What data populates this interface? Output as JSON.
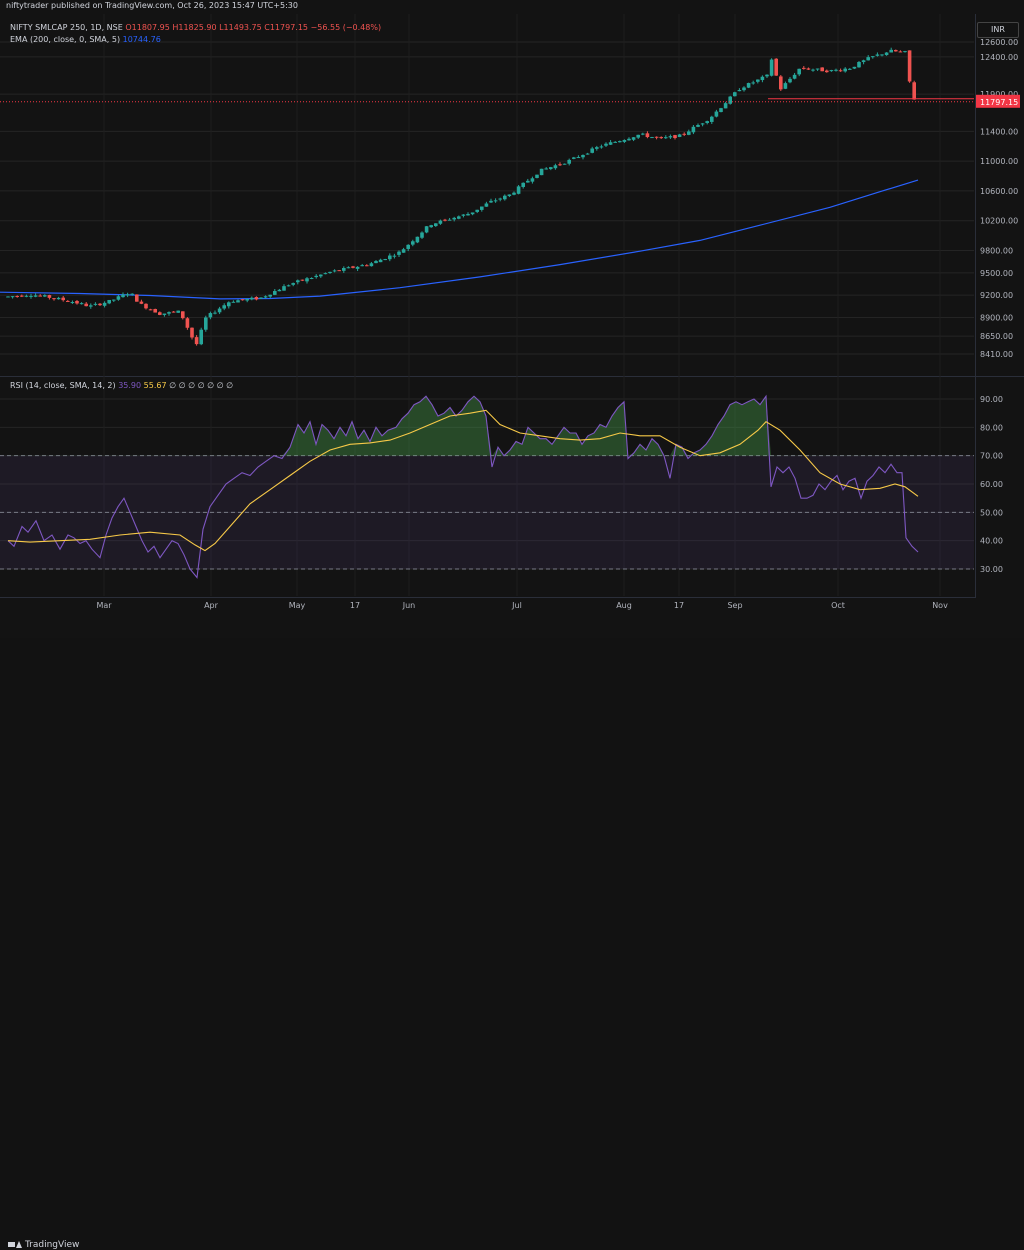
{
  "header": {
    "published": "niftytrader published on TradingView.com, Oct 26, 2023 15:47 UTC+5:30"
  },
  "main_legend": {
    "symbol": "NIFTY SMLCAP 250, 1D, NSE",
    "ohlc": "O11807.95 H11825.90 L11493.75 C11797.15 −56.55 (−0.48%)",
    "ema_label": "EMA (200, close, 0, SMA, 5)",
    "ema_value": "10744.76"
  },
  "rsi_legend": {
    "label": "RSI (14, close, SMA, 14, 2)",
    "rsi_value": "35.90",
    "ma_value": "55.67",
    "extra": "∅ ∅ ∅ ∅ ∅ ∅ ∅"
  },
  "currency_button": "INR",
  "footer": {
    "brand": "TradingView"
  },
  "colors": {
    "up": "#26a69a",
    "down": "#ef5350",
    "ema": "#2962ff",
    "rsi": "#7e57c2",
    "rsi_ma": "#f7c948",
    "last_price": "#f23645"
  },
  "chart_data": [
    {
      "type": "candlestick",
      "title": "NIFTY SMLCAP 250, 1D, NSE",
      "ylim": [
        8230,
        12740
      ],
      "y_ticks": [
        "12600.00",
        "12400.00",
        "11900.00",
        "11400.00",
        "11000.00",
        "10600.00",
        "10200.00",
        "9800.00",
        "9500.00",
        "9200.00",
        "8900.00",
        "8650.00",
        "8410.00"
      ],
      "last_price": "11797.15",
      "x_ticks": [
        "Mar",
        "Apr",
        "May",
        "17",
        "Jun",
        "Jul",
        "Aug",
        "17",
        "Sep",
        "Oct",
        "Nov"
      ],
      "series": [
        {
          "name": "EMA (200, close, 0, SMA, 5)",
          "kind": "line",
          "points": [
            [
              0,
              9240
            ],
            [
              80,
              9222
            ],
            [
              150,
              9195
            ],
            [
              220,
              9150
            ],
            [
              270,
              9155
            ],
            [
              320,
              9188
            ],
            [
              400,
              9300
            ],
            [
              480,
              9445
            ],
            [
              560,
              9610
            ],
            [
              640,
              9790
            ],
            [
              700,
              9935
            ],
            [
              760,
              10140
            ],
            [
              830,
              10380
            ],
            [
              880,
              10590
            ],
            [
              918,
              10744.76
            ]
          ]
        }
      ]
    },
    {
      "type": "line",
      "title": "RSI (14, close, SMA, 14, 2)",
      "ylim": [
        25,
        96
      ],
      "y_ticks": [
        "90.00",
        "80.00",
        "70.00",
        "60.00",
        "50.00",
        "40.00",
        "30.00"
      ],
      "bands": {
        "upper": 70,
        "middle": 50,
        "lower": 30
      },
      "series": [
        {
          "name": "RSI",
          "points": [
            [
              8,
              40
            ],
            [
              14,
              38
            ],
            [
              22,
              45
            ],
            [
              28,
              43
            ],
            [
              36,
              47
            ],
            [
              44,
              40
            ],
            [
              52,
              42
            ],
            [
              60,
              37
            ],
            [
              68,
              42
            ],
            [
              74,
              41
            ],
            [
              80,
              39
            ],
            [
              86,
              40
            ],
            [
              92,
              37
            ],
            [
              100,
              34
            ],
            [
              106,
              42
            ],
            [
              112,
              48
            ],
            [
              118,
              52
            ],
            [
              124,
              55
            ],
            [
              130,
              50
            ],
            [
              136,
              45
            ],
            [
              142,
              40
            ],
            [
              148,
              36
            ],
            [
              154,
              38
            ],
            [
              160,
              34
            ],
            [
              166,
              37
            ],
            [
              172,
              40
            ],
            [
              178,
              39
            ],
            [
              184,
              35
            ],
            [
              190,
              30
            ],
            [
              197,
              27
            ],
            [
              203,
              44
            ],
            [
              210,
              52
            ],
            [
              218,
              56
            ],
            [
              226,
              60
            ],
            [
              234,
              62
            ],
            [
              242,
              64
            ],
            [
              250,
              63
            ],
            [
              258,
              66
            ],
            [
              266,
              68
            ],
            [
              274,
              70
            ],
            [
              282,
              69
            ],
            [
              290,
              73
            ],
            [
              298,
              81
            ],
            [
              304,
              78
            ],
            [
              310,
              82
            ],
            [
              316,
              74
            ],
            [
              322,
              81
            ],
            [
              328,
              79
            ],
            [
              334,
              76
            ],
            [
              340,
              80
            ],
            [
              346,
              77
            ],
            [
              352,
              82
            ],
            [
              358,
              76
            ],
            [
              364,
              79
            ],
            [
              370,
              75
            ],
            [
              376,
              80
            ],
            [
              382,
              77
            ],
            [
              388,
              79
            ],
            [
              396,
              80
            ],
            [
              402,
              83
            ],
            [
              408,
              85
            ],
            [
              414,
              88
            ],
            [
              420,
              89
            ],
            [
              426,
              91
            ],
            [
              432,
              88
            ],
            [
              438,
              84
            ],
            [
              444,
              85
            ],
            [
              450,
              87
            ],
            [
              456,
              84
            ],
            [
              462,
              86
            ],
            [
              468,
              89
            ],
            [
              474,
              91
            ],
            [
              480,
              89
            ],
            [
              486,
              84
            ],
            [
              492,
              66
            ],
            [
              498,
              73
            ],
            [
              504,
              70
            ],
            [
              510,
              72
            ],
            [
              516,
              75
            ],
            [
              522,
              74
            ],
            [
              528,
              80
            ],
            [
              534,
              78
            ],
            [
              540,
              76
            ],
            [
              546,
              76
            ],
            [
              552,
              74
            ],
            [
              558,
              77
            ],
            [
              564,
              80
            ],
            [
              570,
              78
            ],
            [
              576,
              78
            ],
            [
              582,
              74
            ],
            [
              588,
              77
            ],
            [
              594,
              78
            ],
            [
              600,
              81
            ],
            [
              606,
              80
            ],
            [
              612,
              84
            ],
            [
              618,
              87
            ],
            [
              624,
              89
            ],
            [
              628,
              69
            ],
            [
              634,
              71
            ],
            [
              640,
              74
            ],
            [
              646,
              72
            ],
            [
              652,
              76
            ],
            [
              658,
              74
            ],
            [
              664,
              70
            ],
            [
              670,
              62
            ],
            [
              676,
              74
            ],
            [
              682,
              73
            ],
            [
              688,
              69
            ],
            [
              694,
              71
            ],
            [
              700,
              72
            ],
            [
              706,
              74
            ],
            [
              712,
              77
            ],
            [
              718,
              81
            ],
            [
              724,
              84
            ],
            [
              730,
              88
            ],
            [
              736,
              89
            ],
            [
              742,
              88
            ],
            [
              748,
              89
            ],
            [
              754,
              90
            ],
            [
              760,
              88
            ],
            [
              766,
              91
            ],
            [
              771,
              59
            ],
            [
              777,
              66
            ],
            [
              783,
              64
            ],
            [
              789,
              66
            ],
            [
              795,
              62
            ],
            [
              801,
              55
            ],
            [
              807,
              55
            ],
            [
              813,
              56
            ],
            [
              819,
              60
            ],
            [
              825,
              58
            ],
            [
              831,
              61
            ],
            [
              837,
              63
            ],
            [
              843,
              58
            ],
            [
              849,
              61
            ],
            [
              855,
              62
            ],
            [
              861,
              55
            ],
            [
              867,
              61
            ],
            [
              873,
              63
            ],
            [
              879,
              66
            ],
            [
              885,
              64
            ],
            [
              891,
              67
            ],
            [
              897,
              64
            ],
            [
              902,
              64
            ],
            [
              906,
              41
            ],
            [
              912,
              38
            ],
            [
              918,
              36
            ]
          ]
        },
        {
          "name": "RSI-based MA",
          "points": [
            [
              8,
              40
            ],
            [
              30,
              39.5
            ],
            [
              60,
              40
            ],
            [
              90,
              40.5
            ],
            [
              120,
              42
            ],
            [
              150,
              43
            ],
            [
              180,
              42
            ],
            [
              195,
              38.5
            ],
            [
              205,
              36.5
            ],
            [
              215,
              39
            ],
            [
              230,
              45
            ],
            [
              250,
              53
            ],
            [
              270,
              58
            ],
            [
              290,
              63
            ],
            [
              310,
              68
            ],
            [
              330,
              72
            ],
            [
              350,
              74
            ],
            [
              370,
              74.5
            ],
            [
              390,
              75.5
            ],
            [
              410,
              78
            ],
            [
              430,
              81
            ],
            [
              450,
              84
            ],
            [
              470,
              85
            ],
            [
              486,
              86
            ],
            [
              500,
              81
            ],
            [
              520,
              78
            ],
            [
              540,
              77
            ],
            [
              560,
              76
            ],
            [
              580,
              75.5
            ],
            [
              600,
              76
            ],
            [
              620,
              78
            ],
            [
              640,
              77
            ],
            [
              660,
              77
            ],
            [
              680,
              73
            ],
            [
              700,
              70
            ],
            [
              720,
              71
            ],
            [
              740,
              74
            ],
            [
              758,
              79
            ],
            [
              766,
              82
            ],
            [
              780,
              79
            ],
            [
              800,
              72
            ],
            [
              820,
              64
            ],
            [
              840,
              60
            ],
            [
              860,
              58
            ],
            [
              880,
              58.5
            ],
            [
              895,
              60
            ],
            [
              905,
              59
            ],
            [
              918,
              55.67
            ]
          ]
        }
      ]
    }
  ]
}
